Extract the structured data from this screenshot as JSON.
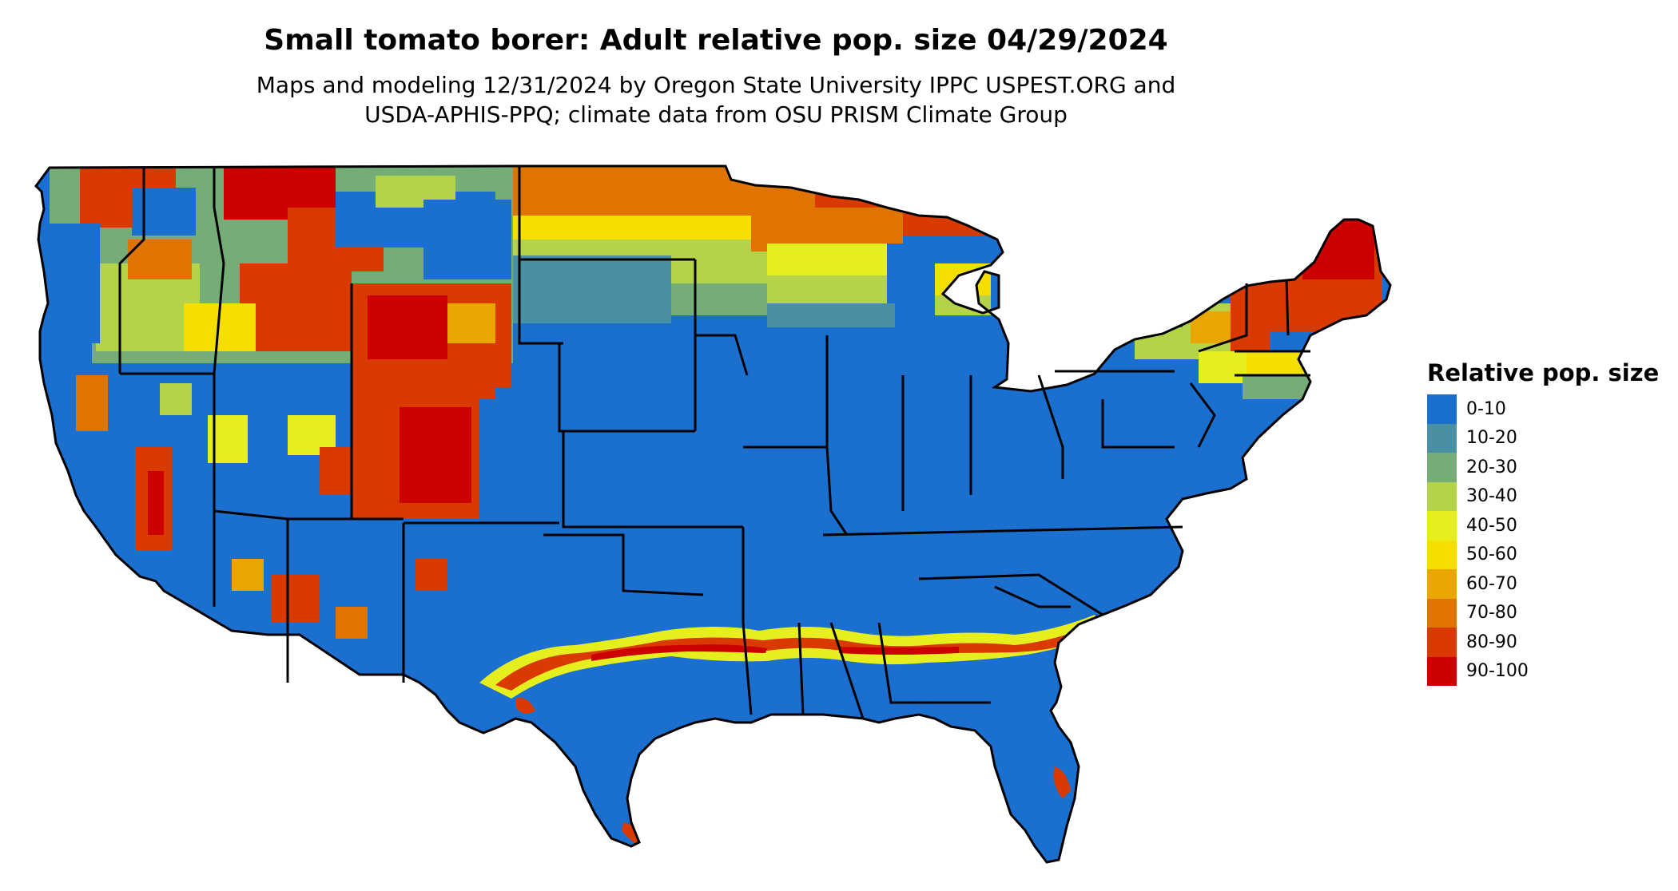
{
  "title": "Small tomato borer: Adult relative pop. size 04/29/2024",
  "subtitle_line1": "Maps and modeling 12/31/2024 by Oregon State University IPPC USPEST.ORG and",
  "subtitle_line2": "USDA-APHIS-PPQ; climate data from OSU PRISM Climate Group",
  "legend": {
    "title": "Relative pop. size",
    "items": [
      {
        "label": "0-10",
        "color": "#1a6fcf"
      },
      {
        "label": "10-20",
        "color": "#4a90a4"
      },
      {
        "label": "20-30",
        "color": "#76ac75"
      },
      {
        "label": "30-40",
        "color": "#b3d34a"
      },
      {
        "label": "40-50",
        "color": "#e6ef1e"
      },
      {
        "label": "50-60",
        "color": "#f5df00"
      },
      {
        "label": "60-70",
        "color": "#eaa600"
      },
      {
        "label": "70-80",
        "color": "#e07400"
      },
      {
        "label": "80-90",
        "color": "#d93a00"
      },
      {
        "label": "90-100",
        "color": "#cc0000"
      }
    ]
  }
}
